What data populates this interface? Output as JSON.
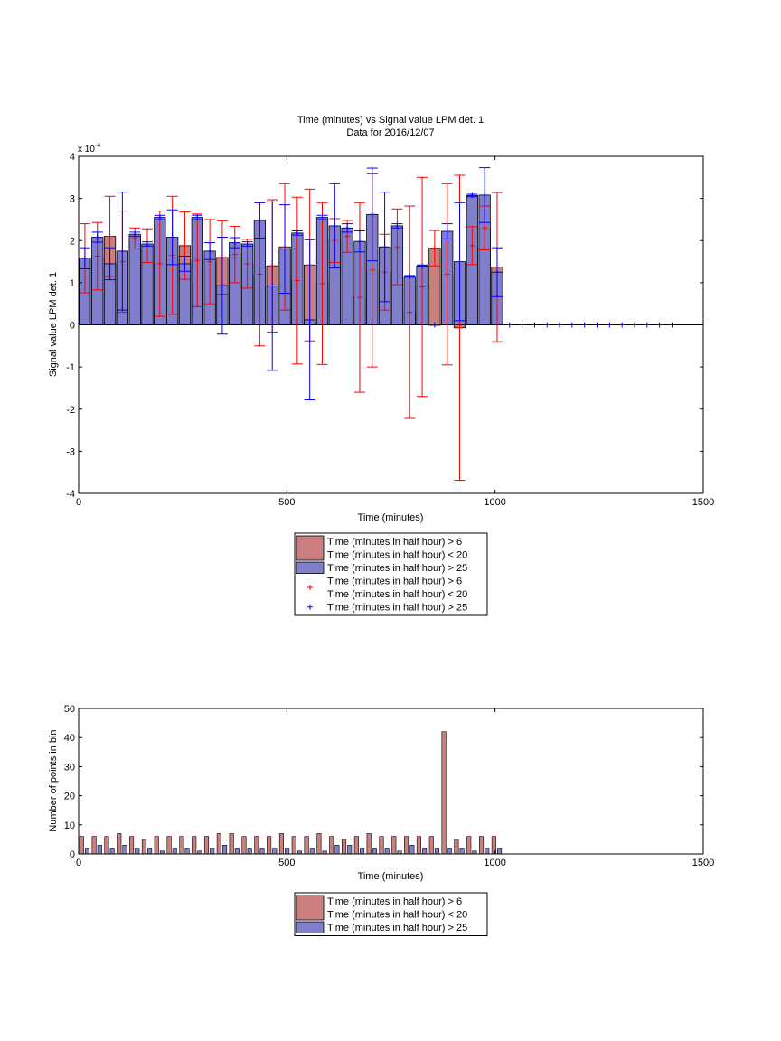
{
  "colors": {
    "red_bar": "#cc7f7f",
    "blue_bar": "#7f7fcc",
    "red_err": "#ff0000",
    "blue_err": "#0000ff"
  },
  "chart_data": [
    {
      "type": "bar",
      "title": "Time (minutes) vs Signal value LPM det. 1",
      "subtitle": "Data for 2016/12/07",
      "xlabel": "Time (minutes)",
      "ylabel": "Signal value LPM det. 1",
      "exponent_label": "x 10",
      "exponent_power": "-4",
      "xlim": [
        0,
        1500
      ],
      "ylim": [
        -4,
        4
      ],
      "xticks": [
        "0",
        "500",
        "1000",
        "1500"
      ],
      "yticks": [
        "-4",
        "-3",
        "-2",
        "-1",
        "0",
        "1",
        "2",
        "3",
        "4"
      ],
      "legend": {
        "placement": "below",
        "entries": [
          {
            "kind": "bar",
            "color": "red",
            "lines": [
              "Time (minutes in half hour) > 6",
              "Time (minutes in half hour) < 20"
            ]
          },
          {
            "kind": "bar",
            "color": "blue",
            "lines": [
              "Time (minutes in half hour) > 25"
            ]
          },
          {
            "kind": "marker",
            "color": "red",
            "lines": [
              "Time (minutes in half hour) > 6",
              "Time (minutes in half hour) < 20"
            ]
          },
          {
            "kind": "marker",
            "color": "blue",
            "lines": [
              "Time (minutes in half hour) > 25"
            ]
          }
        ]
      },
      "series": [
        {
          "color": "red",
          "x": [
            15,
            45,
            75,
            105,
            135,
            165,
            195,
            225,
            255,
            285,
            315,
            345,
            375,
            405,
            435,
            465,
            495,
            525,
            555,
            585,
            615,
            645,
            675,
            705,
            735,
            765,
            795,
            825,
            855,
            885,
            915,
            945,
            975,
            1005
          ],
          "values": [
            1.58,
            1.63,
            2.1,
            1.5,
            2.05,
            1.88,
            1.45,
            1.65,
            1.88,
            1.53,
            1.5,
            1.6,
            1.67,
            1.45,
            1.2,
            1.4,
            1.85,
            1.05,
            1.42,
            0.98,
            2.0,
            2.1,
            0.65,
            1.3,
            1.25,
            1.85,
            0.3,
            0.9,
            1.82,
            1.2,
            -0.07,
            1.88,
            2.3,
            1.37
          ],
          "errors": [
            0.82,
            0.8,
            0.95,
            1.2,
            0.25,
            0.4,
            1.25,
            1.4,
            0.8,
            1.1,
            1.0,
            0.87,
            0.67,
            0.58,
            1.7,
            1.57,
            1.5,
            1.98,
            1.8,
            1.92,
            0.52,
            0.38,
            2.25,
            2.3,
            0.9,
            0.9,
            2.52,
            2.6,
            0.42,
            2.15,
            3.62,
            0.45,
            0.52,
            1.77
          ]
        },
        {
          "color": "blue",
          "x": [
            15,
            45,
            75,
            105,
            135,
            165,
            195,
            225,
            255,
            285,
            315,
            345,
            375,
            405,
            435,
            465,
            495,
            525,
            555,
            585,
            615,
            645,
            675,
            705,
            735,
            765,
            795,
            825,
            855,
            885,
            915,
            945,
            975,
            1005
          ],
          "values": [
            1.58,
            2.08,
            1.45,
            1.75,
            2.15,
            1.92,
            2.55,
            2.08,
            1.45,
            2.55,
            1.75,
            0.93,
            1.95,
            1.92,
            2.48,
            0.92,
            1.8,
            2.18,
            0.12,
            2.55,
            2.35,
            2.3,
            1.98,
            2.62,
            1.85,
            2.35,
            1.15,
            1.4,
            0.0,
            2.22,
            1.5,
            3.07,
            3.08,
            1.25
          ],
          "errors": [
            0.25,
            0.12,
            0.38,
            1.4,
            0.05,
            0.05,
            0.05,
            0.65,
            0.18,
            0.05,
            0.2,
            1.15,
            0.12,
            0.05,
            0.42,
            2.0,
            1.05,
            0.05,
            1.9,
            0.05,
            1.0,
            0.1,
            0.25,
            1.1,
            1.3,
            0.05,
            0.02,
            0.02,
            0.0,
            0.18,
            1.4,
            0.03,
            0.65,
            0.58
          ]
        },
        {
          "color": "blue",
          "kind": "marker",
          "x": [
            1035,
            1065,
            1095,
            1125,
            1155,
            1185,
            1215,
            1245,
            1275,
            1305,
            1335,
            1365,
            1395,
            1425
          ],
          "values": [
            0,
            0,
            0,
            0,
            0,
            0,
            0,
            0,
            0,
            0,
            0,
            0,
            0,
            0
          ]
        }
      ]
    },
    {
      "type": "bar",
      "xlabel": "Time (minutes)",
      "ylabel": "Number of points in bin",
      "xlim": [
        0,
        1500
      ],
      "ylim": [
        0,
        50
      ],
      "xticks": [
        "0",
        "500",
        "1000",
        "1500"
      ],
      "yticks": [
        "0",
        "10",
        "20",
        "30",
        "40",
        "50"
      ],
      "legend": {
        "placement": "below",
        "entries": [
          {
            "kind": "bar",
            "color": "red",
            "lines": [
              "Time (minutes in half hour) > 6",
              "Time (minutes in half hour) < 20"
            ]
          },
          {
            "kind": "bar",
            "color": "blue",
            "lines": [
              "Time (minutes in half hour) > 25"
            ]
          }
        ]
      },
      "x": [
        15,
        45,
        75,
        105,
        135,
        165,
        195,
        225,
        255,
        285,
        315,
        345,
        375,
        405,
        435,
        465,
        495,
        525,
        555,
        585,
        615,
        645,
        675,
        705,
        735,
        765,
        795,
        825,
        855,
        885,
        915,
        945,
        975,
        1005
      ],
      "series": [
        {
          "color": "red",
          "values": [
            6,
            6,
            6,
            7,
            6,
            5,
            6,
            6,
            6,
            6,
            6,
            7,
            7,
            6,
            6,
            6,
            7,
            6,
            6,
            7,
            6,
            5,
            6,
            7,
            6,
            6,
            6,
            6,
            6,
            42,
            5,
            6,
            6,
            6
          ]
        },
        {
          "color": "blue",
          "values": [
            2,
            3,
            2,
            3,
            2,
            2,
            1,
            2,
            2,
            1,
            2,
            3,
            2,
            2,
            2,
            2,
            2,
            1,
            2,
            1,
            3,
            3,
            2,
            2,
            2,
            1,
            3,
            2,
            2,
            2,
            2,
            1,
            2,
            2
          ]
        }
      ]
    }
  ]
}
